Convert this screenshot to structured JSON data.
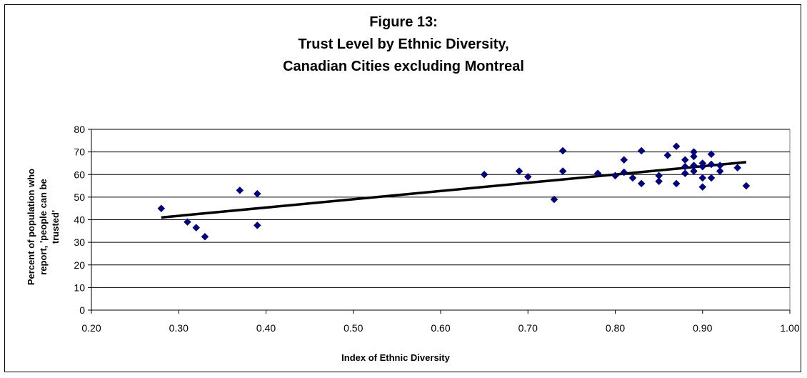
{
  "chart_data": {
    "type": "scatter",
    "title_lines": [
      "Figure 13:",
      "Trust Level by Ethnic Diversity,",
      "Canadian Cities excluding Montreal"
    ],
    "xlabel": "Index of Ethnic Diversity",
    "ylabel_lines": [
      "Percent of population who",
      "report, 'people can be",
      "trusted'"
    ],
    "xlim": [
      0.2,
      1.0
    ],
    "ylim": [
      0,
      80
    ],
    "xticks": [
      "0.20",
      "0.30",
      "0.40",
      "0.50",
      "0.60",
      "0.70",
      "0.80",
      "0.90",
      "1.00"
    ],
    "yticks": [
      "0",
      "10",
      "20",
      "30",
      "40",
      "50",
      "60",
      "70",
      "80"
    ],
    "grid": "horizontal",
    "legend": "none",
    "marker": "diamond",
    "marker_color": "#000080",
    "trend_color": "#000000",
    "points": [
      [
        0.28,
        45
      ],
      [
        0.31,
        39
      ],
      [
        0.32,
        36.5
      ],
      [
        0.33,
        32.5
      ],
      [
        0.37,
        53
      ],
      [
        0.39,
        51.5
      ],
      [
        0.39,
        37.5
      ],
      [
        0.65,
        60
      ],
      [
        0.69,
        61.5
      ],
      [
        0.7,
        59
      ],
      [
        0.73,
        49
      ],
      [
        0.74,
        70.5
      ],
      [
        0.74,
        61.5
      ],
      [
        0.78,
        60.5
      ],
      [
        0.8,
        59.5
      ],
      [
        0.81,
        61
      ],
      [
        0.81,
        66.5
      ],
      [
        0.82,
        58.5
      ],
      [
        0.83,
        70.5
      ],
      [
        0.83,
        56
      ],
      [
        0.85,
        59.5
      ],
      [
        0.85,
        57
      ],
      [
        0.86,
        68.5
      ],
      [
        0.87,
        72.5
      ],
      [
        0.87,
        56
      ],
      [
        0.88,
        66.5
      ],
      [
        0.88,
        63.5
      ],
      [
        0.88,
        60.5
      ],
      [
        0.89,
        70
      ],
      [
        0.89,
        68
      ],
      [
        0.89,
        64
      ],
      [
        0.89,
        61.5
      ],
      [
        0.9,
        65
      ],
      [
        0.9,
        63.5
      ],
      [
        0.9,
        58.5
      ],
      [
        0.9,
        54.5
      ],
      [
        0.91,
        69
      ],
      [
        0.91,
        64.5
      ],
      [
        0.91,
        58.5
      ],
      [
        0.92,
        64
      ],
      [
        0.92,
        61.5
      ],
      [
        0.94,
        63
      ],
      [
        0.95,
        55
      ]
    ],
    "trendline": [
      [
        0.28,
        41
      ],
      [
        0.95,
        65.5
      ]
    ]
  }
}
